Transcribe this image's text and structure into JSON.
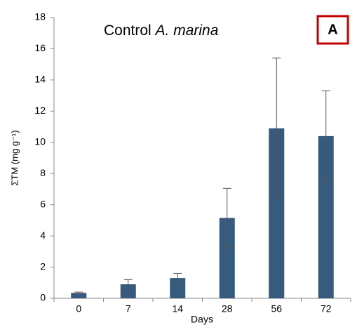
{
  "chart_data": {
    "type": "bar",
    "title": "Control",
    "title_italic": "A. marina",
    "panel_label": "A",
    "x_label": "Days",
    "y_label": "ΣTM (mg g⁻¹)",
    "categories": [
      "0",
      "7",
      "14",
      "28",
      "56",
      "72"
    ],
    "values": [
      0.35,
      0.9,
      1.3,
      5.15,
      10.9,
      10.4
    ],
    "errors": [
      0.05,
      0.3,
      0.3,
      1.9,
      4.5,
      2.9
    ],
    "color": "#375a7f",
    "ylim": [
      0,
      18
    ],
    "yticks": [
      0,
      2,
      4,
      6,
      8,
      10,
      12,
      14,
      16,
      18
    ]
  }
}
